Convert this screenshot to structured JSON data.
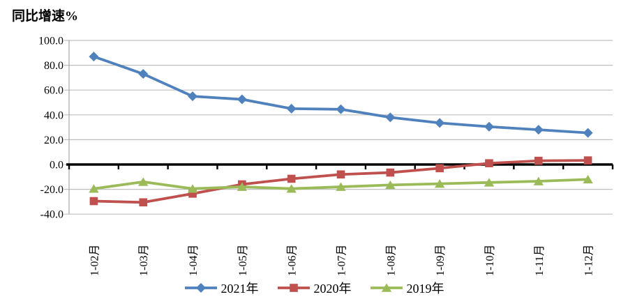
{
  "title": "同比增速%",
  "chart_data": {
    "type": "line",
    "title": "同比增速%",
    "categories": [
      "1-02月",
      "1-03月",
      "1-04月",
      "1-05月",
      "1-06月",
      "1-07月",
      "1-08月",
      "1-09月",
      "1-10月",
      "1-11月",
      "1-12月"
    ],
    "series": [
      {
        "name": "2021年",
        "marker": "diamond",
        "color": "#4F81BD",
        "values": [
          87.0,
          73.0,
          55.0,
          52.5,
          45.0,
          44.5,
          38.0,
          33.5,
          30.5,
          28.0,
          25.5
        ]
      },
      {
        "name": "2020年",
        "marker": "square",
        "color": "#C0504D",
        "values": [
          -29.5,
          -30.5,
          -23.5,
          -16.0,
          -11.5,
          -8.0,
          -6.5,
          -3.0,
          1.0,
          3.0,
          3.3
        ]
      },
      {
        "name": "2019年",
        "marker": "triangle",
        "color": "#9BBB59",
        "values": [
          -19.5,
          -14.0,
          -19.5,
          -18.0,
          -19.5,
          -18.0,
          -16.5,
          -15.5,
          -14.5,
          -13.5,
          -12.0
        ]
      }
    ],
    "ylim": [
      -40,
      100
    ],
    "ytick_step": 20,
    "ytick_labels": [
      "100.0",
      "80.0",
      "60.0",
      "40.0",
      "20.0",
      "0.0",
      "-20.0",
      "-40.0"
    ],
    "xlabel": "",
    "ylabel": "同比增速%",
    "grid": true,
    "legend_position": "bottom",
    "colors": {
      "gridline": "#BFBFBF",
      "axis_line": "#A6A6A6",
      "zero_line": "#000000",
      "text": "#000000",
      "background": "#FFFFFF"
    }
  }
}
